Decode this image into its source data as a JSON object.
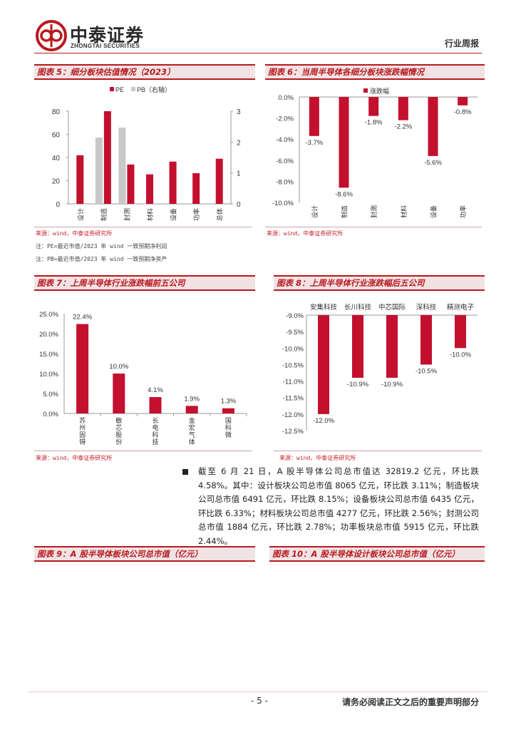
{
  "header": {
    "logo_cn": "中泰证券",
    "logo_en": "ZHONGTAI SECURITIES",
    "report_type": "行业周报"
  },
  "colors": {
    "brand_red": "#b8191f",
    "bar_red": "#c3102e",
    "bar_gray": "#c8c8c8"
  },
  "fig5": {
    "title": "图表 5：细分板块估值情况（2023）",
    "source": "来源：wind，中泰证券研究所",
    "note1": "注：PE=最近市值/2023 年 wind 一致预期净利润",
    "note2": "注：PB=最近市值/2023 年 wind 一致预期净资产"
  },
  "fig6": {
    "title": "图表 6：当周半导体各细分板块涨跌幅情况",
    "source": "来源：wind，中泰证券研究所"
  },
  "fig7": {
    "title": "图表 7：上周半导体行业涨跌幅前五公司",
    "source": "来源：wind，中泰证券研究所"
  },
  "fig8": {
    "title": "图表 8：上周半导体行业涨跌幅后五公司",
    "source": "来源：wind，中泰证券研究所"
  },
  "fig9": {
    "title": "图表 9：A 股半导体板块公司总市值（亿元）"
  },
  "fig10": {
    "title": "图表 10：A 股半导体设计板块公司总市值（亿元）"
  },
  "paragraph": "截至 6 月 21 日，A 股半导体公司总市值达 32819.2 亿元，环比跌 4.58%。其中：设计板块公司总市值 8065 亿元，环比跌 3.11%；制造板块公司总市值 6491 亿元，环比跌 8.15%；设备板块公司总市值 6435 亿元，环比跌 6.33%；材料板块公司总市值 4277 亿元，环比跌 2.56%；封测公司总市值 1884 亿元，环比跌 2.78%；功率板块总市值 5915 亿元，环比跌 2.44%。",
  "footer": {
    "page": "- 5 -",
    "disclaimer": "请务必阅读正文之后的重要声明部分"
  },
  "chart_data": [
    {
      "id": "fig5",
      "type": "bar",
      "categories": [
        "设计",
        "制造",
        "封测",
        "材料",
        "设备",
        "功率",
        "总体"
      ],
      "series": [
        {
          "name": "PE",
          "values": [
            42,
            80,
            34,
            25.5,
            36.5,
            26.5,
            39
          ],
          "axis": "left"
        },
        {
          "name": "PB（右轴）",
          "values": [
            null,
            2.15,
            2.47,
            null,
            null,
            null,
            null
          ],
          "axis": "right"
        }
      ],
      "ylim_left": [
        0,
        80
      ],
      "yticks_left": [
        "0",
        "20",
        "40",
        "60",
        "80"
      ],
      "ylim_right": [
        0,
        3
      ],
      "yticks_right": [
        "0",
        "1",
        "2",
        "3"
      ],
      "legend": "top"
    },
    {
      "id": "fig6",
      "type": "bar",
      "categories": [
        "设计",
        "制造",
        "封测",
        "材料",
        "设备",
        "功率"
      ],
      "series": [
        {
          "name": "涨跌幅",
          "values": [
            -3.7,
            -8.6,
            -1.8,
            -2.2,
            -5.6,
            -0.8
          ]
        }
      ],
      "data_labels": [
        "-3.7%",
        "-8.6%",
        "-1.8%",
        "-2.2%",
        "-5.6%",
        "-0.8%"
      ],
      "ylim": [
        -10,
        0
      ],
      "yticks": [
        "0.0%",
        "-2.0%",
        "-4.0%",
        "-6.0%",
        "-8.0%",
        "-10.0%"
      ],
      "legend": "top-left"
    },
    {
      "id": "fig7",
      "type": "bar",
      "categories": [
        "苏州固锝",
        "敏芯股份",
        "长电科技",
        "金宏气体",
        "国科微"
      ],
      "values": [
        22.4,
        10.0,
        4.1,
        1.9,
        1.3
      ],
      "data_labels": [
        "22.4%",
        "10.0%",
        "4.1%",
        "1.9%",
        "1.3%"
      ],
      "ylim": [
        0,
        25
      ],
      "yticks": [
        "25.0%",
        "20.0%",
        "15.0%",
        "10.0%",
        "5.0%",
        "0.0%"
      ]
    },
    {
      "id": "fig8",
      "type": "bar",
      "categories": [
        "安集科技",
        "长川科技",
        "中芯国际",
        "深科技",
        "精测电子"
      ],
      "values": [
        -12.0,
        -10.9,
        -10.9,
        -10.5,
        -10.0
      ],
      "data_labels": [
        "-12.0%",
        "-10.9%",
        "-10.9%",
        "-10.5%",
        "-10.0%"
      ],
      "ylim": [
        -12.5,
        -9
      ],
      "yticks": [
        "-9.0%",
        "-9.5%",
        "-10.0%",
        "-10.5%",
        "-11.0%",
        "-11.5%",
        "-12.0%",
        "-12.5%"
      ]
    }
  ]
}
